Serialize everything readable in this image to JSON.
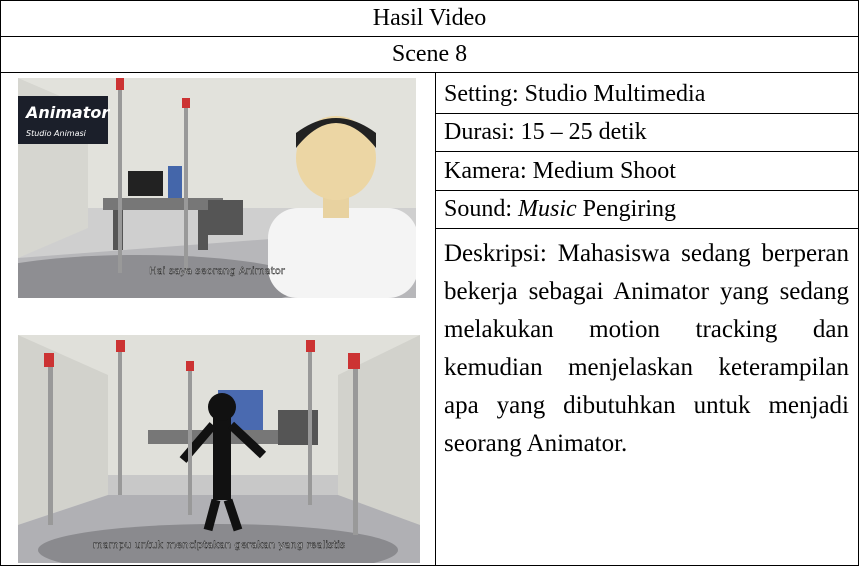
{
  "header": {
    "title": "Hasil Video",
    "scene": "Scene 8"
  },
  "images": [
    {
      "logo": "Animator",
      "logo_sub": "Studio Animasi",
      "caption": "Hai saya seorang Animator"
    },
    {
      "caption": "mampu untuk menciptakan gerakan yang realistis"
    }
  ],
  "details": {
    "setting": "Setting: Studio Multimedia",
    "durasi": "Durasi: 15 – 25 detik",
    "kamera": "Kamera: Medium Shoot",
    "sound": {
      "prefix": "Sound:",
      "italic": "Music",
      "suffix": "Pengiring"
    },
    "deskripsi": "Deskripsi: Mahasiswa sedang berperan bekerja sebagai Animator yang sedang melakukan motion tracking dan kemudian menjelaskan keterampilan apa yang dibutuhkan untuk menjadi seorang Animator."
  }
}
